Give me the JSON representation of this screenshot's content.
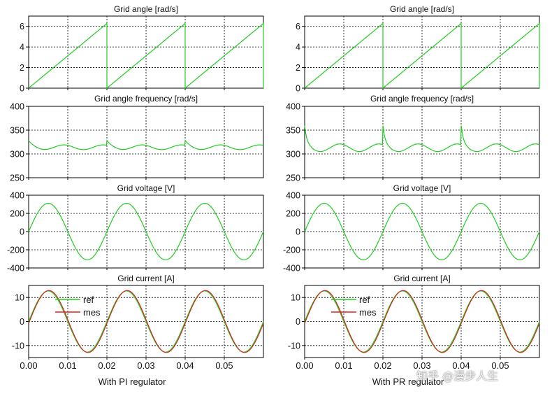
{
  "chart_data": [
    {
      "column": "left",
      "column_label": "With PI regulator",
      "x_ticks": [
        "0.00",
        "0.01",
        "0.02",
        "0.03",
        "0.04",
        "0.05"
      ],
      "xlim": [
        0,
        0.06
      ],
      "plots": [
        {
          "type": "line",
          "title": "Grid angle [rad/s]",
          "ylim": [
            0,
            7
          ],
          "yticks": [
            0,
            2,
            4,
            6
          ],
          "series": [
            {
              "kind": "sawtooth",
              "period": 0.02,
              "amplitude": 6.2832,
              "color": "#22cc22"
            }
          ]
        },
        {
          "type": "line",
          "title": "Grid angle frequency [rad/s]",
          "ylim": [
            250,
            400
          ],
          "yticks": [
            250,
            300,
            350,
            400
          ],
          "series": [
            {
              "kind": "frequency",
              "base": 314,
              "ripple": 5,
              "spike": 10,
              "decay": 0.0012,
              "color": "#22cc22"
            }
          ]
        },
        {
          "type": "line",
          "title": "Grid voltage [V]",
          "ylim": [
            -400,
            400
          ],
          "yticks": [
            -400,
            -200,
            0,
            200,
            400
          ],
          "series": [
            {
              "kind": "sine",
              "amplitude": 311,
              "frequency": 50,
              "phase": 0,
              "color": "#22cc22"
            }
          ]
        },
        {
          "type": "line",
          "title": "Grid current [A]",
          "ylim": [
            -15,
            15
          ],
          "yticks": [
            -10,
            0,
            10
          ],
          "legend": [
            "ref",
            "mes"
          ],
          "series": [
            {
              "name": "ref",
              "kind": "sine",
              "amplitude": 12.7,
              "frequency": 50,
              "phase": 0,
              "color": "#22cc22"
            },
            {
              "name": "mes",
              "kind": "sine",
              "amplitude": 12.9,
              "frequency": 50,
              "phase": -0.06,
              "color": "#dd2222"
            }
          ]
        }
      ]
    },
    {
      "column": "right",
      "column_label": "With PR regulator",
      "x_ticks": [
        "0.00",
        "0.01",
        "0.02",
        "0.03",
        "0.04",
        "0.05"
      ],
      "xlim": [
        0,
        0.06
      ],
      "plots": [
        {
          "type": "line",
          "title": "Grid angle [rad/s]",
          "ylim": [
            0,
            7
          ],
          "yticks": [
            0,
            2,
            4,
            6
          ],
          "series": [
            {
              "kind": "sawtooth",
              "period": 0.02,
              "amplitude": 6.2832,
              "color": "#22cc22"
            }
          ]
        },
        {
          "type": "line",
          "title": "Grid angle frequency [rad/s]",
          "ylim": [
            250,
            400
          ],
          "yticks": [
            250,
            300,
            350,
            400
          ],
          "series": [
            {
              "kind": "frequency",
              "base": 313,
              "ripple": 8,
              "spike": 40,
              "decay": 0.0006,
              "color": "#22cc22"
            }
          ]
        },
        {
          "type": "line",
          "title": "Grid voltage [V]",
          "ylim": [
            -400,
            400
          ],
          "yticks": [
            -400,
            -200,
            0,
            200,
            400
          ],
          "series": [
            {
              "kind": "sine",
              "amplitude": 311,
              "frequency": 50,
              "phase": 0,
              "color": "#22cc22"
            }
          ]
        },
        {
          "type": "line",
          "title": "Grid current [A]",
          "ylim": [
            -15,
            15
          ],
          "yticks": [
            -10,
            0,
            10
          ],
          "legend": [
            "ref",
            "mes"
          ],
          "series": [
            {
              "name": "ref",
              "kind": "sine",
              "amplitude": 12.7,
              "frequency": 50,
              "phase": 0,
              "color": "#22cc22"
            },
            {
              "name": "mes",
              "kind": "sine",
              "amplitude": 12.9,
              "frequency": 50,
              "phase": -0.06,
              "color": "#dd2222"
            }
          ]
        }
      ]
    }
  ],
  "watermark": "知乎 @漫步人生"
}
